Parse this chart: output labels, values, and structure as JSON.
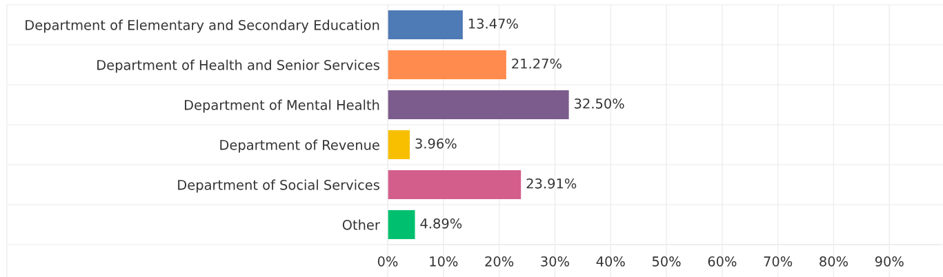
{
  "chart_data": {
    "type": "bar",
    "orientation": "horizontal",
    "categories": [
      "Department of Elementary and Secondary Education",
      "Department of Health and Senior Services",
      "Department of Mental Health",
      "Department of Revenue",
      "Department of Social Services",
      "Other"
    ],
    "values": [
      13.47,
      21.27,
      32.5,
      3.96,
      23.91,
      4.89
    ],
    "colors": [
      "#4e7ab5",
      "#ff8b4f",
      "#7b5c8c",
      "#f7bf00",
      "#d35e8c",
      "#00bf6e"
    ],
    "value_labels": [
      "13.47%",
      "21.27%",
      "32.50%",
      "3.96%",
      "23.91%",
      "4.89%"
    ],
    "xlim": [
      0,
      99
    ],
    "xticks": [
      {
        "value": 0,
        "label": "0%"
      },
      {
        "value": 10,
        "label": "10%"
      },
      {
        "value": 20,
        "label": "20%"
      },
      {
        "value": 30,
        "label": "30%"
      },
      {
        "value": 40,
        "label": "40%"
      },
      {
        "value": 50,
        "label": "50%"
      },
      {
        "value": 60,
        "label": "60%"
      },
      {
        "value": 70,
        "label": "70%"
      },
      {
        "value": 80,
        "label": "80%"
      },
      {
        "value": 90,
        "label": "90%"
      }
    ],
    "grid": "x"
  }
}
